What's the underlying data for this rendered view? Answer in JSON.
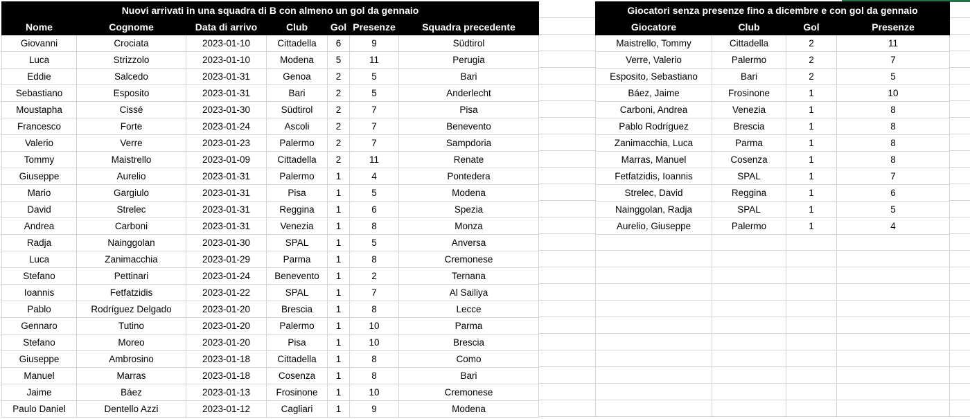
{
  "colors": {
    "header_bg": "#000000",
    "header_text": "#ffffff",
    "gridline": "#d4d4d4",
    "accent_strip": "#217346",
    "cell_text": "#000000"
  },
  "left_table": {
    "title": "Nuovi arrivati in una squadra di B con almeno un gol da gennaio",
    "columns": [
      "Nome",
      "Cognome",
      "Data di arrivo",
      "Club",
      "Gol",
      "Presenze",
      "Squadra precedente"
    ],
    "rows": [
      [
        "Giovanni",
        "Crociata",
        "2023-01-10",
        "Cittadella",
        6,
        9,
        "Südtirol"
      ],
      [
        "Luca",
        "Strizzolo",
        "2023-01-10",
        "Modena",
        5,
        11,
        "Perugia"
      ],
      [
        "Eddie",
        "Salcedo",
        "2023-01-31",
        "Genoa",
        2,
        5,
        "Bari"
      ],
      [
        "Sebastiano",
        "Esposito",
        "2023-01-31",
        "Bari",
        2,
        5,
        "Anderlecht"
      ],
      [
        "Moustapha",
        "Cissé",
        "2023-01-30",
        "Südtirol",
        2,
        7,
        "Pisa"
      ],
      [
        "Francesco",
        "Forte",
        "2023-01-24",
        "Ascoli",
        2,
        7,
        "Benevento"
      ],
      [
        "Valerio",
        "Verre",
        "2023-01-23",
        "Palermo",
        2,
        7,
        "Sampdoria"
      ],
      [
        "Tommy",
        "Maistrello",
        "2023-01-09",
        "Cittadella",
        2,
        11,
        "Renate"
      ],
      [
        "Giuseppe",
        "Aurelio",
        "2023-01-31",
        "Palermo",
        1,
        4,
        "Pontedera"
      ],
      [
        "Mario",
        "Gargiulo",
        "2023-01-31",
        "Pisa",
        1,
        5,
        "Modena"
      ],
      [
        "David",
        "Strelec",
        "2023-01-31",
        "Reggina",
        1,
        6,
        "Spezia"
      ],
      [
        "Andrea",
        "Carboni",
        "2023-01-31",
        "Venezia",
        1,
        8,
        "Monza"
      ],
      [
        "Radja",
        "Nainggolan",
        "2023-01-30",
        "SPAL",
        1,
        5,
        "Anversa"
      ],
      [
        "Luca",
        "Zanimacchia",
        "2023-01-29",
        "Parma",
        1,
        8,
        "Cremonese"
      ],
      [
        "Stefano",
        "Pettinari",
        "2023-01-24",
        "Benevento",
        1,
        2,
        "Ternana"
      ],
      [
        "Ioannis",
        "Fetfatzidis",
        "2023-01-22",
        "SPAL",
        1,
        7,
        "Al Sailiya"
      ],
      [
        "Pablo",
        "Rodríguez Delgado",
        "2023-01-20",
        "Brescia",
        1,
        8,
        "Lecce"
      ],
      [
        "Gennaro",
        "Tutino",
        "2023-01-20",
        "Palermo",
        1,
        10,
        "Parma"
      ],
      [
        "Stefano",
        "Moreo",
        "2023-01-20",
        "Pisa",
        1,
        10,
        "Brescia"
      ],
      [
        "Giuseppe",
        "Ambrosino",
        "2023-01-18",
        "Cittadella",
        1,
        8,
        "Como"
      ],
      [
        "Manuel",
        "Marras",
        "2023-01-18",
        "Cosenza",
        1,
        8,
        "Bari"
      ],
      [
        "Jaime",
        "Báez",
        "2023-01-13",
        "Frosinone",
        1,
        10,
        "Cremonese"
      ],
      [
        "Paulo Daniel",
        "Dentello Azzi",
        "2023-01-12",
        "Cagliari",
        1,
        9,
        "Modena"
      ]
    ]
  },
  "right_table": {
    "title": "Giocatori senza presenze fino a dicembre e con gol da gennaio",
    "columns": [
      "Giocatore",
      "Club",
      "Gol",
      "Presenze"
    ],
    "rows": [
      [
        "Maistrello, Tommy",
        "Cittadella",
        2,
        11
      ],
      [
        "Verre, Valerio",
        "Palermo",
        2,
        7
      ],
      [
        "Esposito, Sebastiano",
        "Bari",
        2,
        5
      ],
      [
        "Báez, Jaime",
        "Frosinone",
        1,
        10
      ],
      [
        "Carboni, Andrea",
        "Venezia",
        1,
        8
      ],
      [
        "Pablo Rodríguez",
        "Brescia",
        1,
        8
      ],
      [
        "Zanimacchia, Luca",
        "Parma",
        1,
        8
      ],
      [
        "Marras, Manuel",
        "Cosenza",
        1,
        8
      ],
      [
        "Fetfatzidis, Ioannis",
        "SPAL",
        1,
        7
      ],
      [
        "Strelec, David",
        "Reggina",
        1,
        6
      ],
      [
        "Nainggolan, Radja",
        "SPAL",
        1,
        5
      ],
      [
        "Aurelio, Giuseppe",
        "Palermo",
        1,
        4
      ]
    ]
  }
}
